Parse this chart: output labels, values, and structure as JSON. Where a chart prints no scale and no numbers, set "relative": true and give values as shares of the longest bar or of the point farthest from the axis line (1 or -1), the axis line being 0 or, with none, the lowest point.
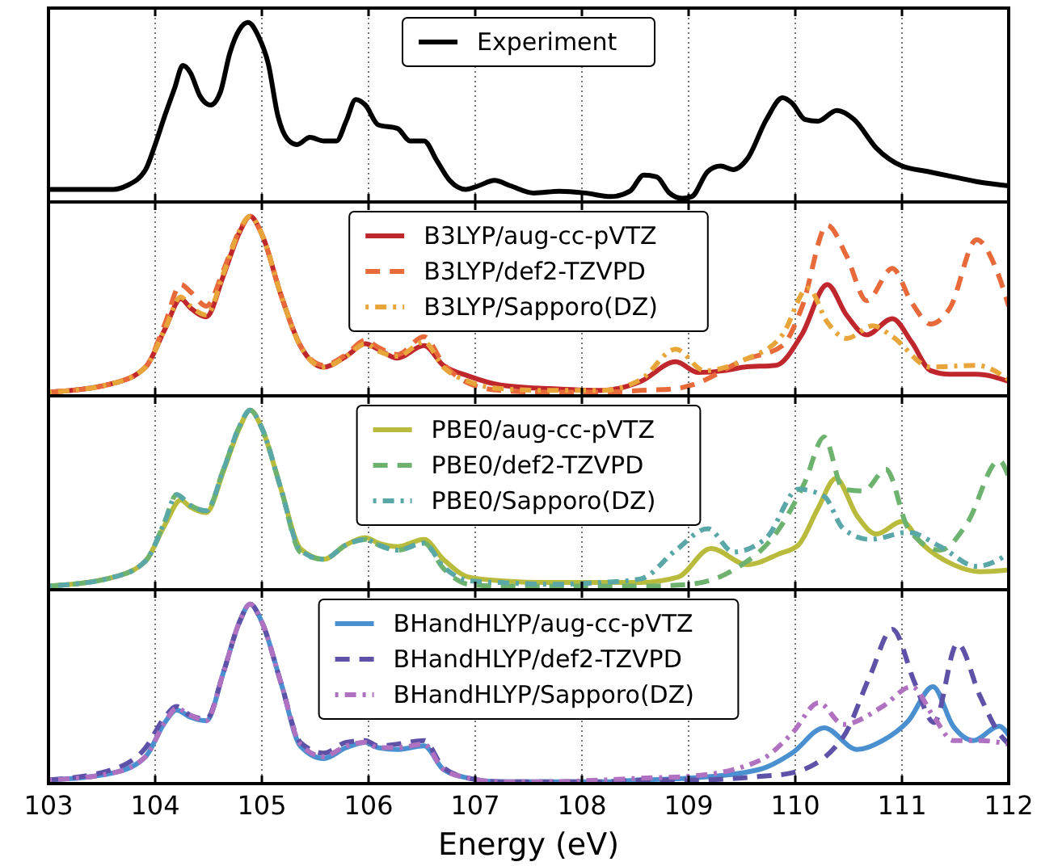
{
  "chart_data": [
    {
      "type": "line",
      "relative": true,
      "xlim": [
        103,
        112
      ],
      "xticks": [
        103,
        104,
        105,
        106,
        107,
        108,
        109,
        110,
        111,
        112
      ],
      "grid": "x",
      "legend": "top",
      "tick_labels": false,
      "series": [
        {
          "name": "Experiment",
          "color": "#000000",
          "line_style": "solid",
          "x": [
            103.0,
            103.61,
            103.73,
            103.91,
            104.0,
            104.09,
            104.18,
            104.26,
            104.33,
            104.42,
            104.52,
            104.61,
            104.7,
            104.79,
            104.87,
            104.97,
            105.06,
            105.15,
            105.24,
            105.33,
            105.45,
            105.58,
            105.7,
            105.79,
            105.88,
            105.97,
            106.09,
            106.27,
            106.39,
            106.52,
            106.64,
            106.76,
            106.91,
            107.03,
            107.18,
            107.33,
            107.55,
            107.79,
            108.03,
            108.27,
            108.45,
            108.58,
            108.7,
            108.82,
            108.94,
            109.03,
            109.18,
            109.3,
            109.42,
            109.55,
            109.73,
            109.88,
            109.97,
            110.09,
            110.21,
            110.39,
            110.55,
            110.76,
            111.0,
            111.24,
            111.48,
            111.73,
            112.0
          ],
          "values": [
            0.07,
            0.07,
            0.09,
            0.18,
            0.32,
            0.48,
            0.63,
            0.76,
            0.72,
            0.59,
            0.54,
            0.61,
            0.83,
            0.96,
            1.0,
            0.92,
            0.77,
            0.48,
            0.35,
            0.32,
            0.36,
            0.34,
            0.34,
            0.45,
            0.57,
            0.54,
            0.43,
            0.41,
            0.34,
            0.34,
            0.23,
            0.12,
            0.07,
            0.09,
            0.12,
            0.09,
            0.05,
            0.06,
            0.05,
            0.03,
            0.06,
            0.15,
            0.14,
            0.05,
            0.02,
            0.03,
            0.17,
            0.2,
            0.18,
            0.24,
            0.46,
            0.58,
            0.55,
            0.46,
            0.45,
            0.51,
            0.46,
            0.3,
            0.2,
            0.17,
            0.14,
            0.11,
            0.09
          ]
        }
      ]
    },
    {
      "type": "line",
      "relative": true,
      "xlim": [
        103,
        112
      ],
      "xticks": [
        103,
        104,
        105,
        106,
        107,
        108,
        109,
        110,
        111,
        112
      ],
      "grid": "x",
      "legend": "top",
      "tick_labels": false,
      "series": [
        {
          "name": "B3LYP/aug-cc-pVTZ",
          "color": "#c0272d",
          "line_style": "solid",
          "x": [
            103.0,
            103.61,
            103.91,
            104.09,
            104.24,
            104.33,
            104.48,
            104.64,
            104.79,
            104.89,
            105.0,
            105.18,
            105.36,
            105.58,
            105.79,
            105.97,
            106.09,
            106.27,
            106.52,
            106.7,
            106.94,
            107.24,
            107.7,
            108.18,
            108.55,
            108.88,
            109.09,
            109.33,
            109.52,
            109.82,
            110.06,
            110.3,
            110.48,
            110.67,
            110.91,
            111.09,
            111.27,
            111.45,
            111.7,
            112.0
          ],
          "values": [
            0.02,
            0.07,
            0.16,
            0.37,
            0.54,
            0.49,
            0.44,
            0.67,
            0.91,
            1.0,
            0.9,
            0.56,
            0.28,
            0.16,
            0.22,
            0.29,
            0.26,
            0.21,
            0.28,
            0.17,
            0.11,
            0.06,
            0.04,
            0.03,
            0.08,
            0.19,
            0.13,
            0.14,
            0.16,
            0.17,
            0.34,
            0.62,
            0.45,
            0.34,
            0.43,
            0.3,
            0.14,
            0.12,
            0.12,
            0.08
          ]
        },
        {
          "name": "B3LYP/def2-TZVPD",
          "color": "#e8693a",
          "line_style": "dashed",
          "x": [
            103.0,
            103.61,
            103.91,
            104.09,
            104.24,
            104.33,
            104.48,
            104.64,
            104.79,
            104.89,
            105.0,
            105.18,
            105.36,
            105.58,
            105.79,
            105.97,
            106.09,
            106.27,
            106.52,
            106.7,
            106.94,
            107.24,
            107.7,
            108.18,
            108.55,
            108.88,
            109.03,
            109.52,
            109.88,
            110.06,
            110.3,
            110.48,
            110.67,
            110.91,
            111.09,
            111.27,
            111.45,
            111.7,
            111.88,
            112.0
          ],
          "values": [
            0.02,
            0.07,
            0.16,
            0.4,
            0.62,
            0.58,
            0.5,
            0.7,
            0.92,
            1.0,
            0.9,
            0.56,
            0.28,
            0.17,
            0.23,
            0.31,
            0.27,
            0.23,
            0.33,
            0.18,
            0.07,
            0.03,
            0.02,
            0.02,
            0.03,
            0.04,
            0.06,
            0.2,
            0.28,
            0.49,
            0.95,
            0.78,
            0.53,
            0.71,
            0.52,
            0.4,
            0.49,
            0.87,
            0.71,
            0.5
          ]
        },
        {
          "name": "B3LYP/Sapporo(DZ)",
          "color": "#e8a53a",
          "line_style": "dotted",
          "x": [
            103.0,
            103.61,
            103.91,
            104.09,
            104.24,
            104.33,
            104.48,
            104.64,
            104.79,
            104.89,
            105.0,
            105.18,
            105.36,
            105.58,
            105.79,
            105.97,
            106.09,
            106.27,
            106.52,
            106.7,
            106.94,
            107.24,
            107.7,
            108.18,
            108.55,
            108.88,
            109.15,
            109.52,
            109.88,
            110.12,
            110.3,
            110.48,
            110.73,
            110.91,
            111.27,
            111.7,
            112.0
          ],
          "values": [
            0.02,
            0.07,
            0.16,
            0.37,
            0.55,
            0.5,
            0.45,
            0.68,
            0.92,
            1.0,
            0.9,
            0.56,
            0.28,
            0.16,
            0.22,
            0.29,
            0.25,
            0.22,
            0.3,
            0.16,
            0.08,
            0.04,
            0.03,
            0.03,
            0.09,
            0.26,
            0.14,
            0.2,
            0.34,
            0.6,
            0.41,
            0.32,
            0.39,
            0.33,
            0.16,
            0.17,
            0.09
          ]
        }
      ]
    },
    {
      "type": "line",
      "relative": true,
      "xlim": [
        103,
        112
      ],
      "xticks": [
        103,
        104,
        105,
        106,
        107,
        108,
        109,
        110,
        111,
        112
      ],
      "grid": "x",
      "legend": "top",
      "tick_labels": false,
      "series": [
        {
          "name": "PBE0/aug-cc-pVTZ",
          "color": "#b9bb3c",
          "line_style": "solid",
          "x": [
            103.0,
            103.61,
            103.91,
            104.09,
            104.24,
            104.33,
            104.48,
            104.64,
            104.79,
            104.89,
            105.0,
            105.18,
            105.36,
            105.58,
            105.79,
            105.97,
            106.09,
            106.27,
            106.52,
            106.7,
            106.94,
            107.24,
            107.7,
            108.18,
            108.55,
            108.9,
            109.21,
            109.55,
            109.85,
            110.03,
            110.21,
            110.38,
            110.58,
            110.76,
            111.0,
            111.18,
            111.48,
            111.73,
            112.0
          ],
          "values": [
            0.02,
            0.07,
            0.16,
            0.36,
            0.5,
            0.46,
            0.43,
            0.66,
            0.9,
            1.0,
            0.9,
            0.56,
            0.23,
            0.17,
            0.25,
            0.29,
            0.26,
            0.24,
            0.28,
            0.17,
            0.07,
            0.05,
            0.04,
            0.04,
            0.04,
            0.07,
            0.23,
            0.14,
            0.2,
            0.25,
            0.45,
            0.62,
            0.41,
            0.31,
            0.38,
            0.26,
            0.14,
            0.1,
            0.11
          ]
        },
        {
          "name": "PBE0/def2-TZVPD",
          "color": "#6db36f",
          "line_style": "dashed",
          "x": [
            103.0,
            103.61,
            103.91,
            104.09,
            104.2,
            104.33,
            104.48,
            104.64,
            104.79,
            104.89,
            105.0,
            105.18,
            105.36,
            105.58,
            105.79,
            105.97,
            106.09,
            106.27,
            106.52,
            106.7,
            106.94,
            107.24,
            107.7,
            108.18,
            108.55,
            109.0,
            109.42,
            109.85,
            110.09,
            110.27,
            110.45,
            110.64,
            110.85,
            111.06,
            111.36,
            111.61,
            111.91,
            112.0
          ],
          "values": [
            0.02,
            0.07,
            0.16,
            0.38,
            0.53,
            0.47,
            0.44,
            0.67,
            0.91,
            1.0,
            0.9,
            0.56,
            0.21,
            0.17,
            0.25,
            0.28,
            0.25,
            0.22,
            0.26,
            0.12,
            0.03,
            0.02,
            0.02,
            0.02,
            0.02,
            0.03,
            0.11,
            0.34,
            0.6,
            0.85,
            0.56,
            0.55,
            0.67,
            0.34,
            0.22,
            0.37,
            0.72,
            0.63
          ]
        },
        {
          "name": "PBE0/Sapporo(DZ)",
          "color": "#5aa7a8",
          "line_style": "dotted",
          "x": [
            103.0,
            103.61,
            103.91,
            104.09,
            104.2,
            104.33,
            104.48,
            104.64,
            104.79,
            104.89,
            105.0,
            105.18,
            105.36,
            105.58,
            105.79,
            105.97,
            106.09,
            106.27,
            106.52,
            106.7,
            106.94,
            107.24,
            107.7,
            108.18,
            108.55,
            108.88,
            109.18,
            109.42,
            109.73,
            110.03,
            110.27,
            110.45,
            110.7,
            111.06,
            111.36,
            111.7,
            112.0
          ],
          "values": [
            0.02,
            0.07,
            0.16,
            0.38,
            0.53,
            0.47,
            0.44,
            0.67,
            0.91,
            1.0,
            0.9,
            0.56,
            0.22,
            0.17,
            0.25,
            0.28,
            0.25,
            0.22,
            0.26,
            0.13,
            0.05,
            0.04,
            0.03,
            0.04,
            0.06,
            0.22,
            0.34,
            0.21,
            0.29,
            0.56,
            0.52,
            0.34,
            0.28,
            0.32,
            0.24,
            0.13,
            0.2
          ]
        }
      ]
    },
    {
      "type": "line",
      "relative": true,
      "xlim": [
        103,
        112
      ],
      "xticks": [
        103,
        104,
        105,
        106,
        107,
        108,
        109,
        110,
        111,
        112
      ],
      "tick_labels": "x",
      "xlabel": "Energy (eV)",
      "grid": "x",
      "legend": "top",
      "series": [
        {
          "name": "BHandHLYP/aug-cc-pVTZ",
          "color": "#4a8fd0",
          "line_style": "solid",
          "x": [
            103.0,
            103.61,
            103.91,
            104.09,
            104.2,
            104.33,
            104.48,
            104.64,
            104.79,
            104.89,
            105.0,
            105.18,
            105.36,
            105.58,
            105.79,
            105.97,
            106.09,
            106.27,
            106.52,
            106.7,
            106.94,
            107.24,
            107.7,
            108.18,
            108.55,
            109.0,
            109.67,
            109.97,
            110.27,
            110.58,
            110.82,
            111.06,
            111.29,
            111.48,
            111.67,
            111.91,
            112.0
          ],
          "values": [
            0.02,
            0.06,
            0.15,
            0.34,
            0.41,
            0.37,
            0.35,
            0.62,
            0.9,
            1.0,
            0.9,
            0.56,
            0.21,
            0.14,
            0.2,
            0.23,
            0.2,
            0.19,
            0.21,
            0.08,
            0.03,
            0.01,
            0.01,
            0.01,
            0.02,
            0.03,
            0.08,
            0.17,
            0.31,
            0.19,
            0.24,
            0.35,
            0.54,
            0.32,
            0.24,
            0.32,
            0.27
          ]
        },
        {
          "name": "BHandHLYP/def2-TZVPD",
          "color": "#5e52a8",
          "line_style": "dashed",
          "x": [
            103.0,
            103.61,
            103.91,
            104.09,
            104.2,
            104.33,
            104.48,
            104.64,
            104.79,
            104.89,
            105.0,
            105.18,
            105.36,
            105.58,
            105.79,
            105.97,
            106.09,
            106.27,
            106.52,
            106.7,
            106.94,
            107.24,
            107.7,
            108.18,
            108.55,
            109.0,
            109.67,
            109.97,
            110.45,
            110.7,
            110.91,
            111.12,
            111.3,
            111.52,
            111.73,
            111.91,
            112.0
          ],
          "values": [
            0.02,
            0.08,
            0.2,
            0.37,
            0.43,
            0.38,
            0.36,
            0.62,
            0.9,
            1.0,
            0.9,
            0.56,
            0.23,
            0.17,
            0.23,
            0.24,
            0.21,
            0.22,
            0.24,
            0.09,
            0.03,
            0.01,
            0.01,
            0.01,
            0.02,
            0.02,
            0.04,
            0.06,
            0.26,
            0.6,
            0.86,
            0.56,
            0.34,
            0.78,
            0.49,
            0.28,
            0.22
          ]
        },
        {
          "name": "BHandHLYP/Sapporo(DZ)",
          "color": "#b072c0",
          "line_style": "dotted",
          "x": [
            103.0,
            103.61,
            103.91,
            104.09,
            104.2,
            104.33,
            104.48,
            104.64,
            104.79,
            104.89,
            105.0,
            105.18,
            105.36,
            105.58,
            105.79,
            105.97,
            106.09,
            106.27,
            106.52,
            106.7,
            106.94,
            107.24,
            107.7,
            108.18,
            108.55,
            109.0,
            109.67,
            109.97,
            110.22,
            110.45,
            110.82,
            111.09,
            111.3,
            111.48,
            111.73,
            112.0
          ],
          "values": [
            0.02,
            0.06,
            0.15,
            0.34,
            0.42,
            0.38,
            0.35,
            0.62,
            0.9,
            1.0,
            0.9,
            0.56,
            0.22,
            0.15,
            0.21,
            0.23,
            0.2,
            0.2,
            0.22,
            0.08,
            0.03,
            0.01,
            0.01,
            0.02,
            0.03,
            0.04,
            0.13,
            0.28,
            0.45,
            0.33,
            0.43,
            0.54,
            0.37,
            0.24,
            0.24,
            0.22
          ]
        }
      ]
    }
  ]
}
